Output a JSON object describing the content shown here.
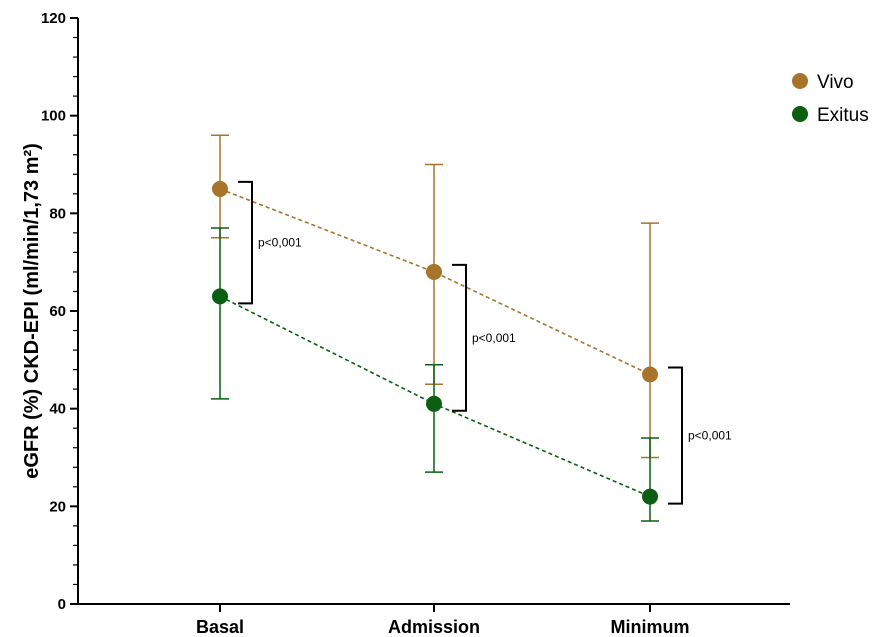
{
  "chart_data": {
    "type": "line",
    "categories": [
      "Basal",
      "Admission",
      "Minimum"
    ],
    "ylabel": "eGFR (%) CKD-EPI (ml/min/1,73 m²)",
    "ylim": [
      0,
      120
    ],
    "yticks": [
      0,
      20,
      40,
      60,
      80,
      100,
      120
    ],
    "series": [
      {
        "name": "Vivo",
        "color": "#A8732A",
        "values": [
          85,
          68,
          47
        ],
        "err_low": [
          75,
          45,
          30
        ],
        "err_high": [
          96,
          90,
          78
        ]
      },
      {
        "name": "Exitus",
        "color": "#0B5E12",
        "values": [
          63,
          41,
          22
        ],
        "err_low": [
          42,
          27,
          17
        ],
        "err_high": [
          77,
          49,
          34
        ]
      }
    ],
    "annotations": [
      {
        "category": "Basal",
        "text": "p<0,001",
        "from": 85,
        "to": 63
      },
      {
        "category": "Admission",
        "text": "p<0,001",
        "from": 68,
        "to": 41
      },
      {
        "category": "Minimum",
        "text": "p<0,001",
        "from": 47,
        "to": 22
      }
    ],
    "legend_position": "top-right",
    "grid": false
  }
}
